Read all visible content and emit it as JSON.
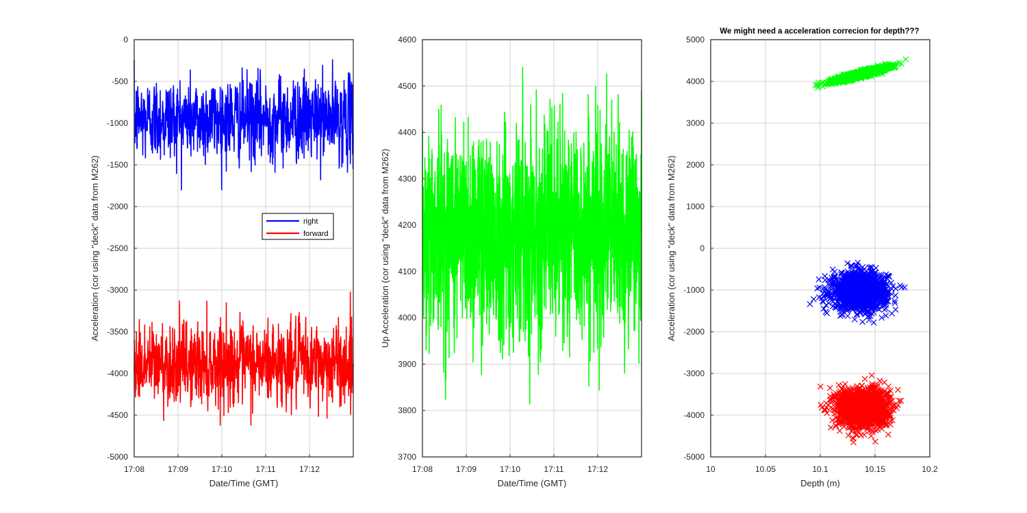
{
  "chart_data": [
    {
      "type": "line",
      "x_ticks": [
        "17:08",
        "17:09",
        "17:10",
        "17:11",
        "17:12"
      ],
      "x_range": [
        "17:08",
        "17:13"
      ],
      "xlabel": "Date/Time (GMT)",
      "ylabel": "Acceleration (cor using \"deck\" data from M262)",
      "ylim": [
        -5000,
        0
      ],
      "y_ticks": [
        0,
        -500,
        -1000,
        -1500,
        -2000,
        -2500,
        -3000,
        -3500,
        -4000,
        -4500,
        -5000
      ],
      "grid": true,
      "legend": {
        "placement": "center-right",
        "entries": [
          "right",
          "forward"
        ]
      },
      "series": [
        {
          "name": "right",
          "color": "#0000ff",
          "mean": -950,
          "range": [
            -1800,
            -150
          ]
        },
        {
          "name": "forward",
          "color": "#ff0000",
          "mean": -3880,
          "range": [
            -4620,
            -3000
          ]
        }
      ]
    },
    {
      "type": "line",
      "x_ticks": [
        "17:08",
        "17:09",
        "17:10",
        "17:11",
        "17:12"
      ],
      "x_range": [
        "17:08",
        "17:13"
      ],
      "xlabel": "Date/Time (GMT)",
      "ylabel": "Up Acceleration (cor using \"deck\" data from M262)",
      "ylim": [
        3700,
        4600
      ],
      "y_ticks": [
        4600,
        4500,
        4400,
        4300,
        4200,
        4100,
        4000,
        3900,
        3800,
        3700
      ],
      "grid": true,
      "series": [
        {
          "color": "#00ff00",
          "mean": 4190,
          "range": [
            3780,
            4540
          ]
        }
      ]
    },
    {
      "type": "scatter",
      "title": "We might need a acceleration correcion for depth???",
      "xlabel": "Depth (m)",
      "ylabel": "Acceleration (cor using \"deck\" data from M262)",
      "xlim": [
        10,
        10.2
      ],
      "x_ticks": [
        "10",
        "10.05",
        "10.1",
        "10.15",
        "10.2"
      ],
      "ylim": [
        -5000,
        5000
      ],
      "y_ticks": [
        5000,
        4000,
        3000,
        2000,
        1000,
        0,
        -1000,
        -2000,
        -3000,
        -4000,
        -5000
      ],
      "grid": true,
      "marker": "x",
      "series": [
        {
          "color": "#00ff00",
          "depth_range": [
            10.09,
            10.178
          ],
          "accel_range": [
            3800,
            4530
          ]
        },
        {
          "color": "#0000ff",
          "depth_range": [
            10.09,
            10.178
          ],
          "accel_range": [
            -1780,
            -250
          ]
        },
        {
          "color": "#ff0000",
          "depth_range": [
            10.095,
            10.178
          ],
          "accel_range": [
            -4650,
            -3000
          ]
        }
      ]
    }
  ]
}
